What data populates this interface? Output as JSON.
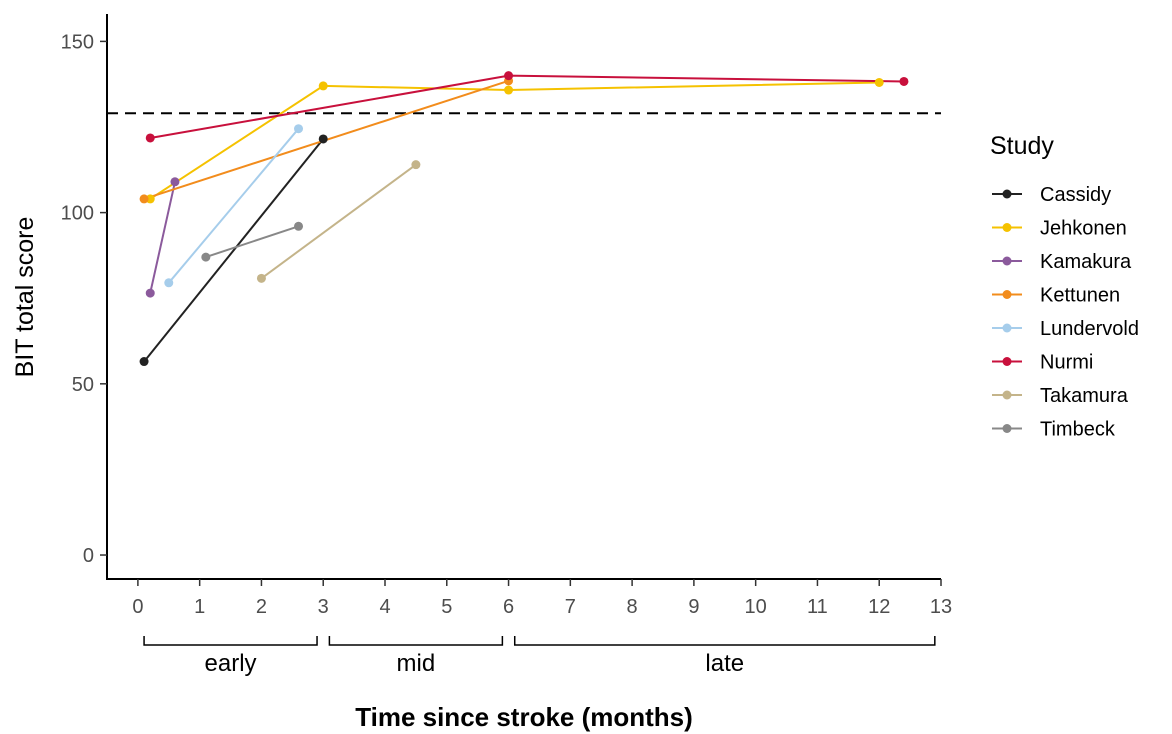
{
  "chart_data": {
    "type": "line",
    "xlabel": "Time since stroke (months)",
    "ylabel": "BIT total score",
    "xlim": [
      -0.5,
      13
    ],
    "ylim": [
      -7,
      158
    ],
    "x_ticks": [
      0,
      1,
      2,
      3,
      4,
      5,
      6,
      7,
      8,
      9,
      10,
      11,
      12,
      13
    ],
    "y_ticks": [
      0,
      50,
      100,
      150
    ],
    "reference_line": {
      "y": 129,
      "style": "dashed",
      "color": "#000000"
    },
    "phases": [
      {
        "label": "early",
        "from": 0.1,
        "to": 2.9
      },
      {
        "label": "mid",
        "from": 3.1,
        "to": 5.9
      },
      {
        "label": "late",
        "from": 6.1,
        "to": 12.9
      }
    ],
    "legend": {
      "title": "Study",
      "position": "right"
    },
    "series": [
      {
        "name": "Cassidy",
        "color": "#222222",
        "points": [
          [
            0.1,
            56.5
          ],
          [
            3.0,
            121.5
          ]
        ]
      },
      {
        "name": "Jehkonen",
        "color": "#F5C200",
        "points": [
          [
            0.2,
            104
          ],
          [
            3.0,
            137
          ],
          [
            6.0,
            135.8
          ],
          [
            12.0,
            138
          ]
        ]
      },
      {
        "name": "Kamakura",
        "color": "#8B5A9C",
        "points": [
          [
            0.2,
            76.5
          ],
          [
            0.6,
            109
          ]
        ]
      },
      {
        "name": "Kettunen",
        "color": "#F28C1C",
        "points": [
          [
            0.1,
            104
          ],
          [
            6.0,
            138.5
          ]
        ]
      },
      {
        "name": "Lundervold",
        "color": "#A6CDEB",
        "points": [
          [
            0.5,
            79.5
          ],
          [
            2.6,
            124.5
          ]
        ]
      },
      {
        "name": "Nurmi",
        "color": "#C8103C",
        "points": [
          [
            0.2,
            121.8
          ],
          [
            6.0,
            140
          ],
          [
            12.4,
            138.3
          ]
        ]
      },
      {
        "name": "Takamura",
        "color": "#C4B48A",
        "points": [
          [
            2.0,
            80.8
          ],
          [
            4.5,
            114
          ]
        ]
      },
      {
        "name": "Timbeck",
        "color": "#888888",
        "points": [
          [
            1.1,
            87
          ],
          [
            2.6,
            96
          ]
        ]
      }
    ]
  }
}
